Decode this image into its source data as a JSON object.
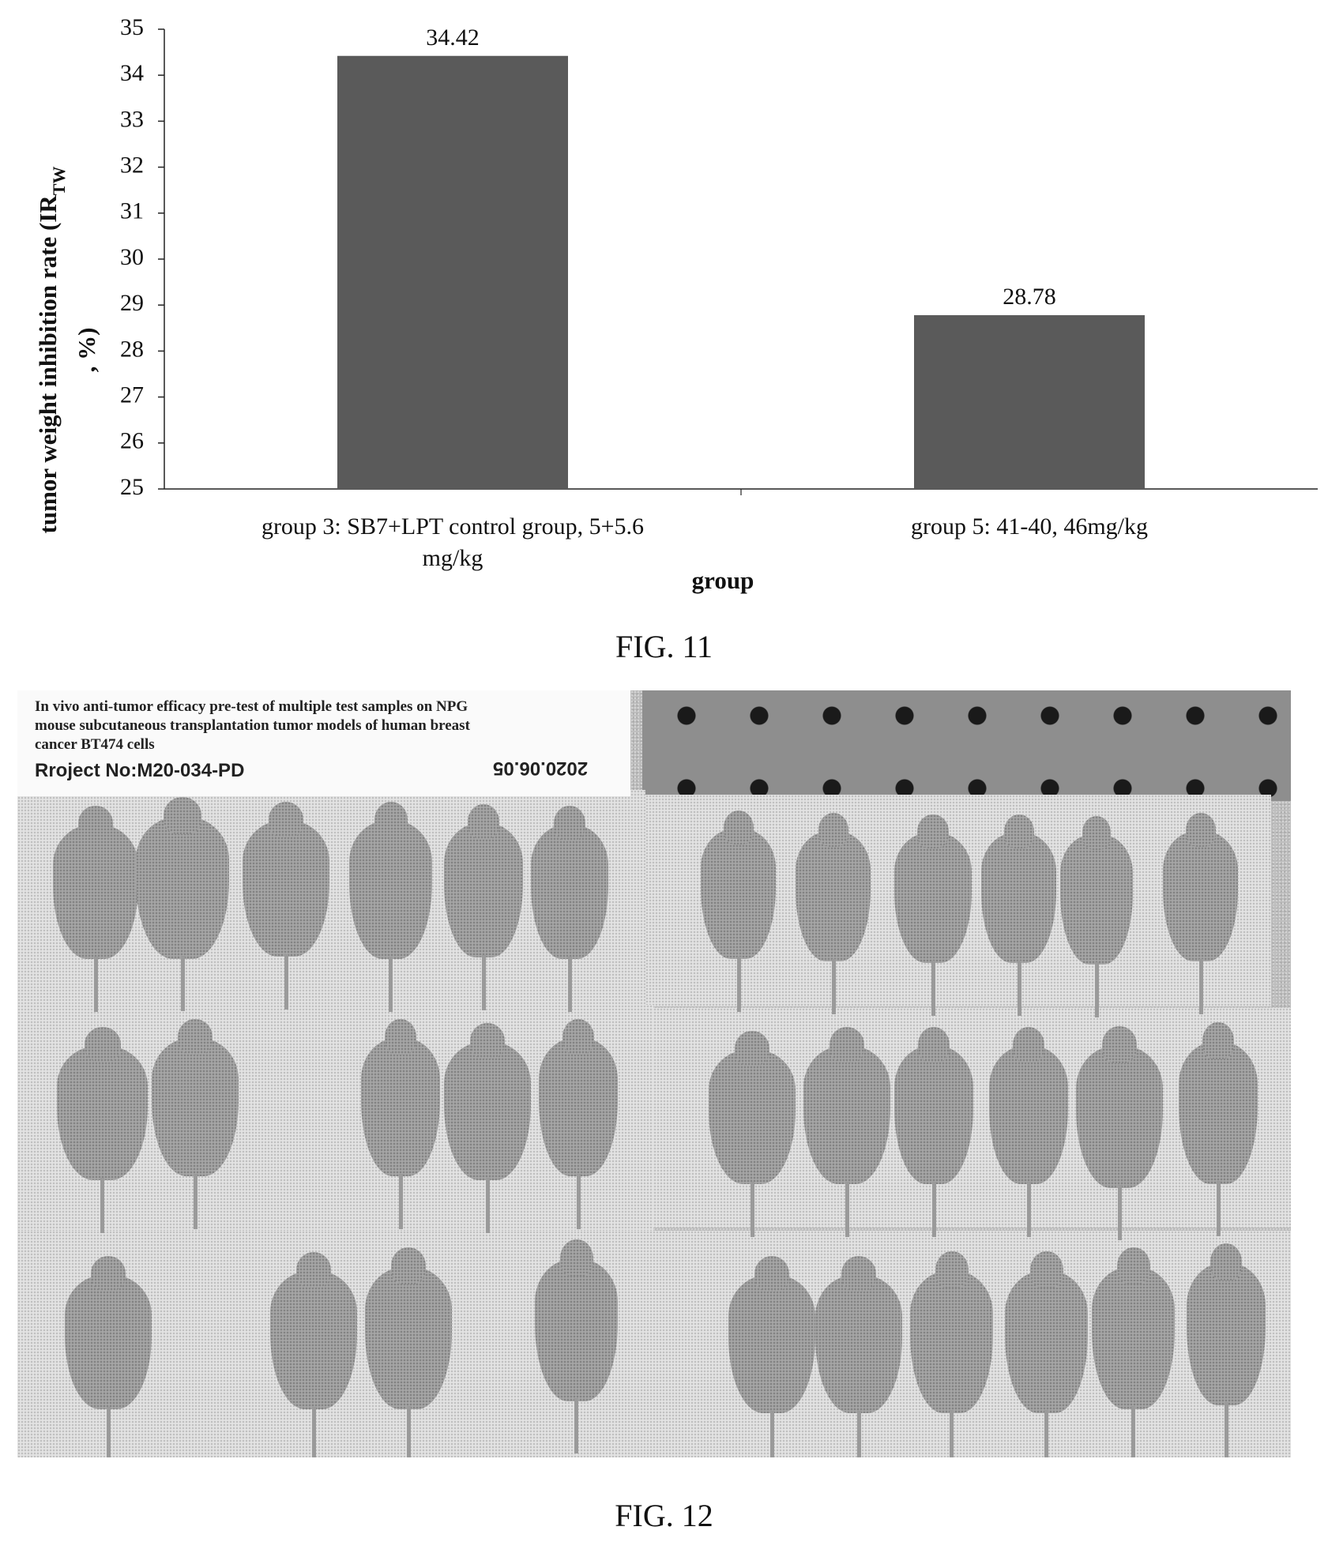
{
  "chart_data": {
    "type": "bar",
    "title": "",
    "xlabel": "group",
    "ylabel_main": "tumor weight inhibition rate (IR",
    "ylabel_sub": "TW",
    "ylabel_tail": ", %)",
    "ylim": [
      25,
      35
    ],
    "yticks": [
      25,
      26,
      27,
      28,
      29,
      30,
      31,
      32,
      33,
      34,
      35
    ],
    "categories": [
      [
        "group 3: SB7+LPT control group, 5+5.6",
        "mg/kg"
      ],
      [
        "group 5: 41-40, 46mg/kg"
      ]
    ],
    "values": [
      34.42,
      28.78
    ],
    "value_labels": [
      "34.42",
      "28.78"
    ],
    "bar_color": "#5a5a5a",
    "grid": false,
    "legend": "none"
  },
  "captions": {
    "fig11": "FIG. 11",
    "fig12": "FIG. 12"
  },
  "photo": {
    "label_lines": [
      "In vivo anti-tumor efficacy pre-test of multiple test samples on NPG",
      "mouse subcutaneous transplantation tumor models of human breast",
      "cancer BT474 cells"
    ],
    "project": "Rroject No:M20-034-PD",
    "date": "2020.06.05"
  }
}
